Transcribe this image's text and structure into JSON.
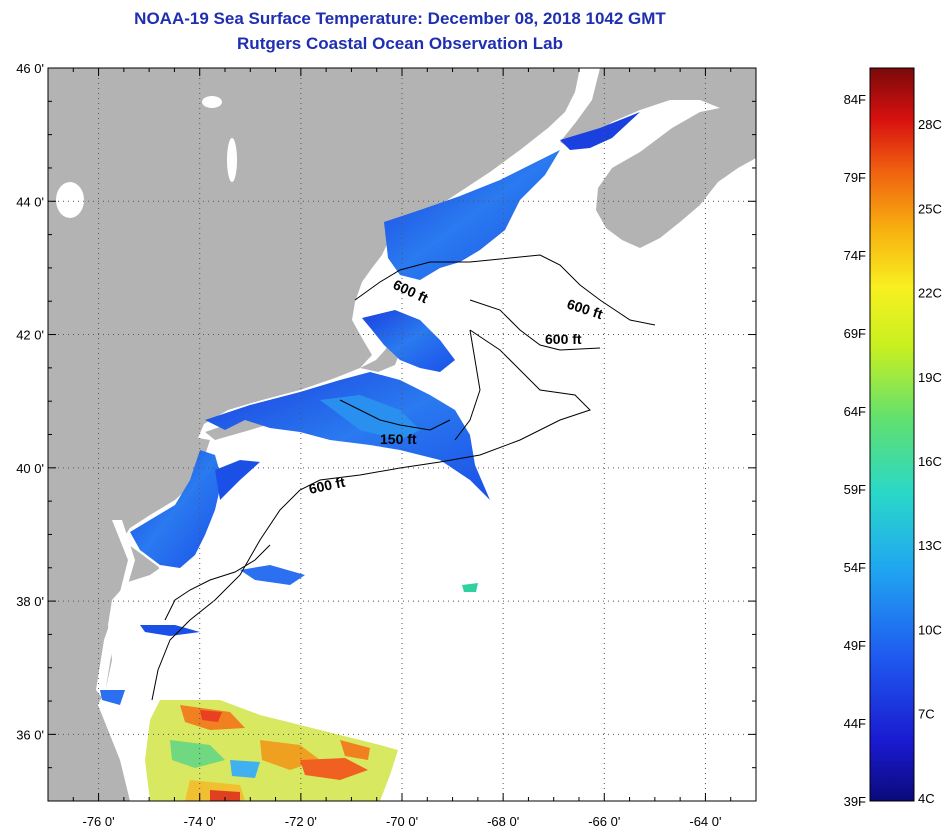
{
  "header": {
    "title": "NOAA-19 Sea Surface Temperature:  December 08, 2018 1042 GMT",
    "subtitle": "Rutgers Coastal Ocean Observation Lab"
  },
  "map": {
    "lon_range": [
      -77,
      -63
    ],
    "lat_range": [
      35,
      46
    ],
    "lat_ticks": [
      {
        "value": 46,
        "label": "46 0'"
      },
      {
        "value": 44,
        "label": "44 0'"
      },
      {
        "value": 42,
        "label": "42 0'"
      },
      {
        "value": 40,
        "label": "40 0'"
      },
      {
        "value": 38,
        "label": "38 0'"
      },
      {
        "value": 36,
        "label": "36 0'"
      }
    ],
    "lon_ticks": [
      {
        "value": -76,
        "label": "-76 0'"
      },
      {
        "value": -74,
        "label": "-74 0'"
      },
      {
        "value": -72,
        "label": "-72 0'"
      },
      {
        "value": -70,
        "label": "-70 0'"
      },
      {
        "value": -68,
        "label": "-68 0'"
      },
      {
        "value": -66,
        "label": "-66 0'"
      },
      {
        "value": -64,
        "label": "-64 0'"
      }
    ],
    "contour_labels": [
      "600 ft",
      "600 ft",
      "600 ft",
      "150 ft",
      "600 ft"
    ],
    "colors": {
      "land": "#b3b3b3",
      "ocean_no_data": "#ffffff",
      "sst_cold": "#1a4fe0",
      "sst_cool": "#2f8cf0",
      "title": "#1f2fb0"
    }
  },
  "colorbar": {
    "fahrenheit": [
      "84F",
      "79F",
      "74F",
      "69F",
      "64F",
      "59F",
      "54F",
      "49F",
      "44F",
      "39F"
    ],
    "celsius": [
      "28C",
      "25C",
      "22C",
      "19C",
      "16C",
      "13C",
      "10C",
      "7C",
      "4C"
    ],
    "range_f": [
      39,
      86
    ]
  }
}
